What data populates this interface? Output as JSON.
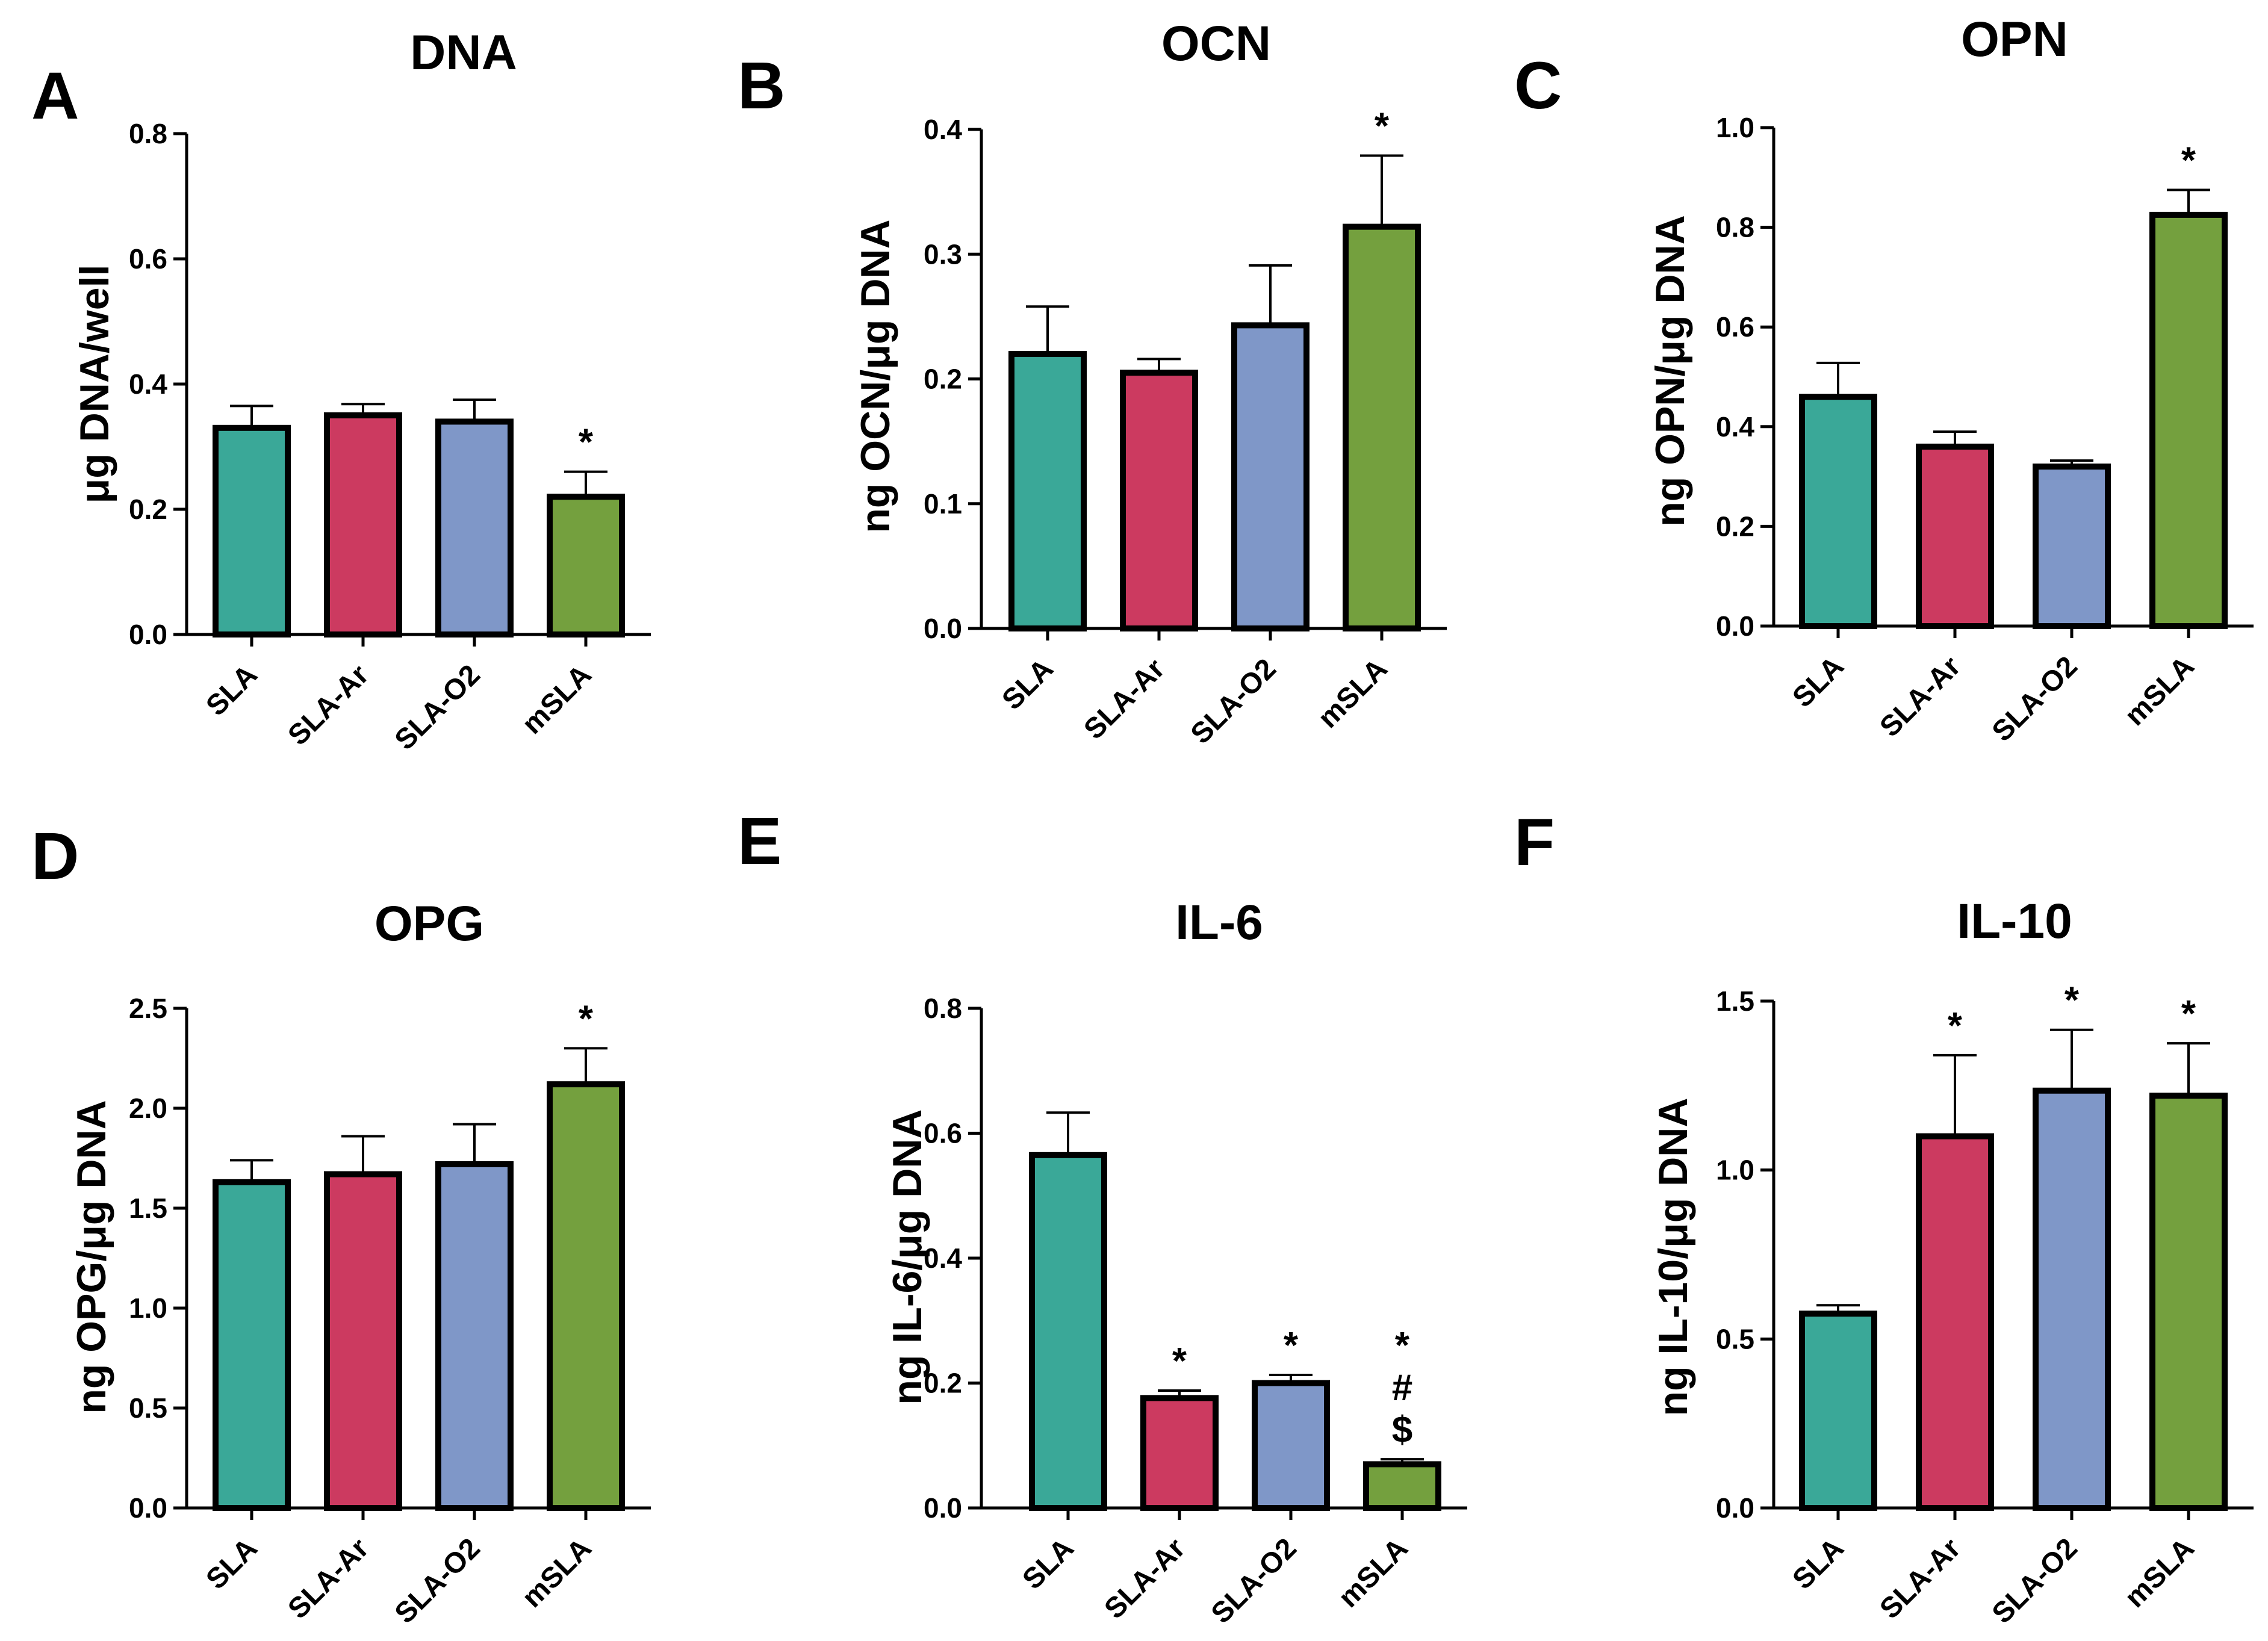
{
  "figure": {
    "colors": {
      "SLA": "#3aa898",
      "SLA-Ar": "#cc3a60",
      "SLA-O2": "#7f97c8",
      "mSLA": "#74a03e"
    }
  },
  "chart_data": [
    {
      "panel": "A",
      "type": "bar",
      "title": "DNA",
      "xlabel": "",
      "ylabel": "μg DNA/well",
      "categories": [
        "SLA",
        "SLA-Ar",
        "SLA-O2",
        "mSLA"
      ],
      "values": [
        0.33,
        0.35,
        0.34,
        0.22
      ],
      "errors": [
        0.035,
        0.018,
        0.035,
        0.04
      ],
      "annotations": [
        [],
        [],
        [],
        [
          "*"
        ]
      ],
      "ylim": [
        0,
        0.8
      ],
      "yticks": [
        0.0,
        0.2,
        0.4,
        0.6,
        0.8
      ],
      "ytick_labels": [
        "0.0",
        "0.2",
        "0.4",
        "0.6",
        "0.8"
      ]
    },
    {
      "panel": "B",
      "type": "bar",
      "title": "OCN",
      "xlabel": "",
      "ylabel": "ng OCN/μg DNA",
      "categories": [
        "SLA",
        "SLA-Ar",
        "SLA-O2",
        "mSLA"
      ],
      "values": [
        0.22,
        0.205,
        0.243,
        0.322
      ],
      "errors": [
        0.038,
        0.011,
        0.048,
        0.057
      ],
      "annotations": [
        [],
        [],
        [],
        [
          "*"
        ]
      ],
      "ylim": [
        0,
        0.4
      ],
      "yticks": [
        0.0,
        0.1,
        0.2,
        0.3,
        0.4
      ],
      "ytick_labels": [
        "0.0",
        "0.1",
        "0.2",
        "0.3",
        "0.4"
      ]
    },
    {
      "panel": "C",
      "type": "bar",
      "title": "OPN",
      "xlabel": "",
      "ylabel": "ng OPN/μg DNA",
      "categories": [
        "SLA",
        "SLA-Ar",
        "SLA-O2",
        "mSLA"
      ],
      "values": [
        0.46,
        0.36,
        0.32,
        0.825
      ],
      "errors": [
        0.068,
        0.03,
        0.012,
        0.05
      ],
      "annotations": [
        [],
        [],
        [],
        [
          "*"
        ]
      ],
      "ylim": [
        0,
        1.0
      ],
      "yticks": [
        0.0,
        0.2,
        0.4,
        0.6,
        0.8,
        1.0
      ],
      "ytick_labels": [
        "0.0",
        "0.2",
        "0.4",
        "0.6",
        "0.8",
        "1.0"
      ]
    },
    {
      "panel": "D",
      "type": "bar",
      "title": "OPG",
      "xlabel": "",
      "ylabel": "ng OPG/μg DNA",
      "categories": [
        "SLA",
        "SLA-Ar",
        "SLA-O2",
        "mSLA"
      ],
      "values": [
        1.63,
        1.67,
        1.72,
        2.12
      ],
      "errors": [
        0.11,
        0.19,
        0.2,
        0.18
      ],
      "annotations": [
        [],
        [],
        [],
        [
          "*"
        ]
      ],
      "ylim": [
        0,
        2.5
      ],
      "yticks": [
        0.0,
        0.5,
        1.0,
        1.5,
        2.0,
        2.5
      ],
      "ytick_labels": [
        "0.0",
        "0.5",
        "1.0",
        "1.5",
        "2.0",
        "2.5"
      ]
    },
    {
      "panel": "E",
      "type": "bar",
      "title": "IL-6",
      "xlabel": "",
      "ylabel": "ng IL-6/μg DNA",
      "categories": [
        "SLA",
        "SLA-Ar",
        "SLA-O2",
        "mSLA"
      ],
      "values": [
        0.565,
        0.176,
        0.2,
        0.07
      ],
      "errors": [
        0.068,
        0.012,
        0.013,
        0.008
      ],
      "annotations": [
        [],
        [
          "*"
        ],
        [
          "*"
        ],
        [
          "*",
          "#",
          "$"
        ]
      ],
      "ylim": [
        0,
        0.8
      ],
      "yticks": [
        0.0,
        0.2,
        0.4,
        0.6,
        0.8
      ],
      "ytick_labels": [
        "0.0",
        "0.2",
        "0.4",
        "0.6",
        "0.8"
      ]
    },
    {
      "panel": "F",
      "type": "bar",
      "title": "IL-10",
      "xlabel": "",
      "ylabel": "ng IL-10/μg DNA",
      "categories": [
        "SLA",
        "SLA-Ar",
        "SLA-O2",
        "mSLA"
      ],
      "values": [
        0.575,
        1.1,
        1.235,
        1.22
      ],
      "errors": [
        0.025,
        0.24,
        0.18,
        0.155
      ],
      "annotations": [
        [],
        [
          "*"
        ],
        [
          "*"
        ],
        [
          "*"
        ]
      ],
      "ylim": [
        0,
        1.5
      ],
      "yticks": [
        0.0,
        0.5,
        1.0,
        1.5
      ],
      "ytick_labels": [
        "0.0",
        "0.5",
        "1.0",
        "1.5"
      ]
    }
  ]
}
